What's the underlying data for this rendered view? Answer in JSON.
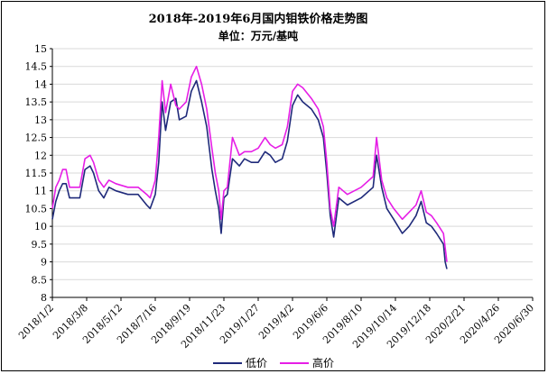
{
  "chart_data": {
    "type": "line",
    "title": "2018年-2019年6月国内钼铁价格走势图",
    "subtitle": "单位：万元/基吨",
    "ylim": [
      8,
      15
    ],
    "yticks": [
      "8",
      "8.5",
      "9",
      "9.5",
      "10",
      "10.5",
      "11",
      "11.5",
      "12",
      "12.5",
      "13",
      "13.5",
      "14",
      "14.5",
      "15"
    ],
    "categories": [
      "2018/1/2",
      "2018/3/8",
      "2018/5/12",
      "2018/7/16",
      "2018/9/19",
      "2018/11/23",
      "2019/1/27",
      "2019/4/2",
      "2019/6/6",
      "2019/8/10",
      "2019/10/14",
      "2019/12/18",
      "2020/2/21",
      "2020/4/26",
      "2020/6/30"
    ],
    "grid": true,
    "legend_position": "bottom",
    "series": [
      {
        "name": "低价",
        "color": "#1f2a7a",
        "points": [
          [
            0,
            10.2
          ],
          [
            0.1,
            10.7
          ],
          [
            0.2,
            11.0
          ],
          [
            0.3,
            11.2
          ],
          [
            0.4,
            11.2
          ],
          [
            0.5,
            10.8
          ],
          [
            0.8,
            10.8
          ],
          [
            0.95,
            11.6
          ],
          [
            1.1,
            11.7
          ],
          [
            1.2,
            11.5
          ],
          [
            1.35,
            11.0
          ],
          [
            1.5,
            10.8
          ],
          [
            1.65,
            11.1
          ],
          [
            1.85,
            11.0
          ],
          [
            2.2,
            10.9
          ],
          [
            2.5,
            10.9
          ],
          [
            2.75,
            10.6
          ],
          [
            2.85,
            10.5
          ],
          [
            3.0,
            10.9
          ],
          [
            3.1,
            11.8
          ],
          [
            3.2,
            13.5
          ],
          [
            3.3,
            12.7
          ],
          [
            3.45,
            13.5
          ],
          [
            3.6,
            13.6
          ],
          [
            3.7,
            13.0
          ],
          [
            3.9,
            13.1
          ],
          [
            4.05,
            13.8
          ],
          [
            4.2,
            14.1
          ],
          [
            4.35,
            13.5
          ],
          [
            4.5,
            12.8
          ],
          [
            4.65,
            11.6
          ],
          [
            4.75,
            11.0
          ],
          [
            4.85,
            10.5
          ],
          [
            4.92,
            9.8
          ],
          [
            5.0,
            10.8
          ],
          [
            5.1,
            10.9
          ],
          [
            5.25,
            11.9
          ],
          [
            5.45,
            11.7
          ],
          [
            5.6,
            11.9
          ],
          [
            5.8,
            11.8
          ],
          [
            6.0,
            11.8
          ],
          [
            6.2,
            12.1
          ],
          [
            6.35,
            12.0
          ],
          [
            6.5,
            11.8
          ],
          [
            6.7,
            11.9
          ],
          [
            6.85,
            12.4
          ],
          [
            7.0,
            13.4
          ],
          [
            7.15,
            13.7
          ],
          [
            7.3,
            13.5
          ],
          [
            7.55,
            13.3
          ],
          [
            7.75,
            13.0
          ],
          [
            7.9,
            12.5
          ],
          [
            8.0,
            11.5
          ],
          [
            8.1,
            10.3
          ],
          [
            8.2,
            9.7
          ],
          [
            8.35,
            10.8
          ],
          [
            8.6,
            10.6
          ],
          [
            9.0,
            10.8
          ],
          [
            9.35,
            11.1
          ],
          [
            9.45,
            12.0
          ],
          [
            9.6,
            11.1
          ],
          [
            9.75,
            10.5
          ],
          [
            9.95,
            10.2
          ],
          [
            10.2,
            9.8
          ],
          [
            10.4,
            10.0
          ],
          [
            10.6,
            10.3
          ],
          [
            10.75,
            10.7
          ],
          [
            10.9,
            10.1
          ],
          [
            11.05,
            10.0
          ],
          [
            11.2,
            9.8
          ],
          [
            11.4,
            9.5
          ],
          [
            11.45,
            9.0
          ],
          [
            11.5,
            8.8
          ]
        ]
      },
      {
        "name": "高价",
        "color": "#e61ee6",
        "points": [
          [
            0,
            10.5
          ],
          [
            0.1,
            11.1
          ],
          [
            0.2,
            11.3
          ],
          [
            0.3,
            11.6
          ],
          [
            0.4,
            11.6
          ],
          [
            0.5,
            11.1
          ],
          [
            0.8,
            11.1
          ],
          [
            0.95,
            11.9
          ],
          [
            1.1,
            12.0
          ],
          [
            1.2,
            11.8
          ],
          [
            1.35,
            11.3
          ],
          [
            1.5,
            11.1
          ],
          [
            1.65,
            11.3
          ],
          [
            1.85,
            11.2
          ],
          [
            2.2,
            11.1
          ],
          [
            2.5,
            11.1
          ],
          [
            2.75,
            10.9
          ],
          [
            2.85,
            10.8
          ],
          [
            3.0,
            11.3
          ],
          [
            3.1,
            12.5
          ],
          [
            3.2,
            14.1
          ],
          [
            3.3,
            13.2
          ],
          [
            3.45,
            14.0
          ],
          [
            3.6,
            13.4
          ],
          [
            3.7,
            13.3
          ],
          [
            3.9,
            13.5
          ],
          [
            4.05,
            14.2
          ],
          [
            4.2,
            14.5
          ],
          [
            4.35,
            14.0
          ],
          [
            4.5,
            13.3
          ],
          [
            4.65,
            12.2
          ],
          [
            4.75,
            11.5
          ],
          [
            4.85,
            11.0
          ],
          [
            4.92,
            10.2
          ],
          [
            5.0,
            11.0
          ],
          [
            5.1,
            11.1
          ],
          [
            5.25,
            12.5
          ],
          [
            5.45,
            12.0
          ],
          [
            5.6,
            12.1
          ],
          [
            5.8,
            12.1
          ],
          [
            6.0,
            12.2
          ],
          [
            6.2,
            12.5
          ],
          [
            6.35,
            12.3
          ],
          [
            6.5,
            12.2
          ],
          [
            6.7,
            12.3
          ],
          [
            6.85,
            12.8
          ],
          [
            7.0,
            13.8
          ],
          [
            7.15,
            14.0
          ],
          [
            7.3,
            13.9
          ],
          [
            7.55,
            13.6
          ],
          [
            7.75,
            13.3
          ],
          [
            7.9,
            12.8
          ],
          [
            8.0,
            11.8
          ],
          [
            8.1,
            10.5
          ],
          [
            8.2,
            10.0
          ],
          [
            8.35,
            11.1
          ],
          [
            8.6,
            10.9
          ],
          [
            9.0,
            11.1
          ],
          [
            9.35,
            11.4
          ],
          [
            9.45,
            12.5
          ],
          [
            9.6,
            11.3
          ],
          [
            9.75,
            10.8
          ],
          [
            9.95,
            10.5
          ],
          [
            10.2,
            10.2
          ],
          [
            10.4,
            10.4
          ],
          [
            10.6,
            10.6
          ],
          [
            10.75,
            11.0
          ],
          [
            10.9,
            10.4
          ],
          [
            11.05,
            10.3
          ],
          [
            11.2,
            10.1
          ],
          [
            11.4,
            9.8
          ],
          [
            11.45,
            9.4
          ],
          [
            11.5,
            9.0
          ]
        ]
      }
    ]
  }
}
